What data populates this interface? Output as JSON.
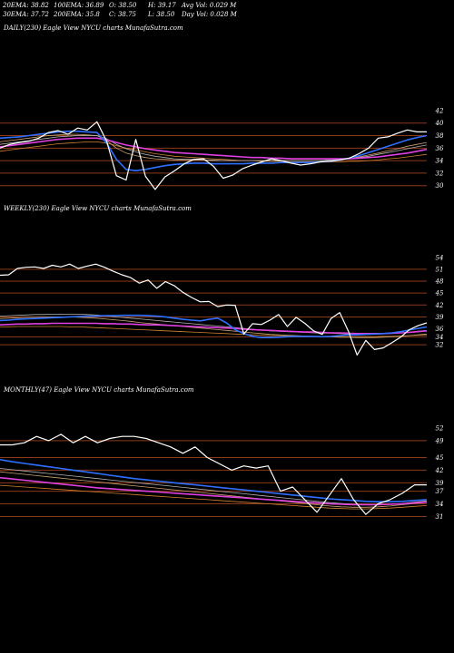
{
  "stats": {
    "ema20": "20EMA: 38.82",
    "ema100": "100EMA: 36.89",
    "open": "O: 38.50",
    "high": "H: 39.17",
    "avg_vol": "Avg Vol: 0.029 M",
    "ema30": "30EMA: 37.72",
    "ema200": "200EMA: 35.8",
    "close": "C: 38.75",
    "low": "L: 38.50",
    "day_vol": "Day Vol: 0.028 M"
  },
  "colors": {
    "background": "#000000",
    "price": "#ffffff",
    "ema_blue": "#2f6fff",
    "ema_pink": "#e040e0",
    "level_line": "#8b3a1a",
    "ema_tan": "#c8a070",
    "ema_orange": "#d08030",
    "ema_gray": "#b0b0b0"
  },
  "chart_data": [
    {
      "type": "line",
      "title": "DAILY(230) Eagle  View  NYCU charts MunafaSutra.com",
      "y_ticks": [
        "42",
        "40",
        "38",
        "36",
        "34",
        "32",
        "30"
      ],
      "levels": [
        40,
        38,
        36,
        34,
        32,
        30
      ],
      "ylim": [
        27.5,
        43
      ],
      "series": [
        {
          "role": "price",
          "values": [
            36.0,
            36.6,
            36.9,
            37.1,
            37.6,
            38.5,
            38.8,
            38.2,
            39.2,
            38.9,
            40.2,
            37.1,
            31.6,
            30.9,
            37.4,
            31.5,
            29.4,
            31.4,
            32.4,
            33.5,
            34.2,
            34.3,
            33.1,
            31.2,
            31.7,
            32.7,
            33.3,
            33.8,
            34.3,
            34.0,
            33.6,
            33.3,
            33.5,
            33.8,
            33.9,
            34.1,
            34.4,
            35.1,
            36.0,
            37.6,
            37.8,
            38.4,
            38.9,
            38.6,
            38.6
          ]
        },
        {
          "role": "ema",
          "color": "blue",
          "values": [
            37.6,
            37.7,
            37.8,
            38.0,
            38.2,
            38.4,
            38.6,
            38.7,
            38.7,
            38.6,
            38.5,
            36.8,
            34.2,
            32.6,
            32.4,
            32.6,
            32.9,
            33.2,
            33.4,
            33.5,
            33.6,
            33.6,
            33.5,
            33.5,
            33.5,
            33.5,
            33.6,
            33.6,
            33.6,
            33.7,
            33.7,
            33.7,
            33.7,
            33.8,
            33.9,
            34.1,
            34.4,
            34.8,
            35.3,
            35.8,
            36.3,
            36.8,
            37.3,
            37.7,
            38.0
          ]
        },
        {
          "role": "ema",
          "color": "pink",
          "values": [
            36.2,
            36.4,
            36.6,
            36.8,
            37.0,
            37.2,
            37.4,
            37.5,
            37.6,
            37.6,
            37.6,
            37.3,
            36.9,
            36.5,
            36.2,
            35.9,
            35.7,
            35.5,
            35.3,
            35.2,
            35.1,
            35.0,
            34.9,
            34.8,
            34.7,
            34.6,
            34.5,
            34.5,
            34.4,
            34.4,
            34.3,
            34.3,
            34.3,
            34.3,
            34.3,
            34.3,
            34.3,
            34.4,
            34.5,
            34.6,
            34.8,
            35.0,
            35.2,
            35.5,
            35.8
          ]
        },
        {
          "role": "ema",
          "color": "tan",
          "values": [
            37.0,
            37.2,
            37.4,
            37.6,
            37.8,
            38.0,
            38.1,
            38.2,
            38.2,
            38.1,
            38.0,
            37.2,
            36.0,
            35.2,
            34.8,
            34.5,
            34.3,
            34.2,
            34.1,
            34.1,
            34.1,
            34.1,
            34.0,
            34.0,
            34.0,
            34.0,
            34.0,
            34.0,
            34.0,
            34.0,
            34.0,
            34.0,
            34.0,
            34.0,
            34.1,
            34.2,
            34.4,
            34.6,
            34.9,
            35.2,
            35.6,
            35.9,
            36.3,
            36.6,
            36.9
          ]
        },
        {
          "role": "ema",
          "color": "orange",
          "values": [
            35.5,
            35.7,
            35.9,
            36.1,
            36.3,
            36.5,
            36.7,
            36.8,
            36.9,
            37.0,
            37.0,
            36.8,
            36.4,
            36.0,
            35.7,
            35.4,
            35.1,
            34.9,
            34.7,
            34.6,
            34.5,
            34.4,
            34.3,
            34.2,
            34.1,
            34.0,
            34.0,
            33.9,
            33.9,
            33.9,
            33.8,
            33.8,
            33.8,
            33.8,
            33.8,
            33.8,
            33.9,
            33.9,
            34.0,
            34.1,
            34.3,
            34.4,
            34.6,
            34.8,
            35.0
          ]
        },
        {
          "role": "ema",
          "color": "gray",
          "values": [
            36.6,
            36.8,
            37.0,
            37.2,
            37.4,
            37.6,
            37.8,
            37.9,
            38.0,
            38.0,
            38.0,
            37.5,
            36.6,
            35.9,
            35.4,
            35.0,
            34.7,
            34.5,
            34.3,
            34.2,
            34.2,
            34.1,
            34.1,
            34.0,
            34.0,
            34.0,
            34.0,
            34.0,
            34.0,
            34.0,
            34.0,
            34.0,
            34.0,
            34.0,
            34.1,
            34.2,
            34.3,
            34.5,
            34.7,
            35.0,
            35.3,
            35.6,
            35.9,
            36.2,
            36.5
          ]
        }
      ]
    },
    {
      "type": "line",
      "title": "WEEKLY(230) Eagle  View  NYCU charts MunafaSutra.com",
      "y_ticks": [
        "54",
        "51",
        "48",
        "45",
        "42",
        "39",
        "36",
        "34",
        "32"
      ],
      "levels": [
        51,
        48,
        45,
        42,
        39,
        34,
        32
      ],
      "ylim": [
        27,
        56
      ],
      "series": [
        {
          "role": "price",
          "values": [
            49.5,
            49.6,
            51.2,
            51.5,
            51.6,
            51.2,
            52.0,
            51.6,
            52.3,
            51.2,
            51.8,
            52.3,
            51.5,
            50.5,
            49.6,
            48.9,
            47.5,
            48.3,
            46.2,
            47.9,
            46.9,
            45.2,
            43.9,
            42.8,
            42.9,
            41.6,
            42.0,
            41.9,
            34.7,
            37.3,
            37.1,
            38.2,
            39.6,
            36.6,
            38.9,
            37.4,
            35.5,
            34.6,
            38.6,
            40.1,
            35.4,
            29.4,
            33.1,
            30.8,
            31.2,
            32.5,
            33.9,
            35.8,
            36.8,
            37.5
          ]
        },
        {
          "role": "ema",
          "color": "blue",
          "values": [
            38.1,
            38.2,
            38.4,
            38.5,
            38.6,
            38.7,
            38.8,
            38.9,
            39.0,
            39.1,
            39.2,
            39.2,
            39.3,
            39.3,
            39.4,
            39.4,
            39.4,
            39.3,
            39.2,
            39.0,
            38.7,
            38.4,
            38.2,
            38.0,
            38.4,
            38.7,
            37.5,
            35.8,
            34.8,
            34.1,
            33.8,
            33.8,
            33.9,
            34.0,
            34.1,
            34.1,
            34.1,
            34.0,
            34.1,
            34.3,
            34.5,
            34.5,
            34.6,
            34.7,
            34.8,
            35.0,
            35.3,
            35.7,
            36.1,
            36.5
          ]
        },
        {
          "role": "ema",
          "color": "pink",
          "values": [
            37.0,
            37.1,
            37.2,
            37.2,
            37.3,
            37.3,
            37.4,
            37.4,
            37.4,
            37.4,
            37.4,
            37.4,
            37.3,
            37.3,
            37.2,
            37.2,
            37.1,
            37.0,
            37.0,
            36.9,
            36.8,
            36.7,
            36.6,
            36.5,
            36.4,
            36.3,
            36.2,
            36.1,
            35.9,
            35.8,
            35.7,
            35.6,
            35.5,
            35.4,
            35.3,
            35.2,
            35.2,
            35.1,
            35.0,
            35.0,
            34.9,
            34.8,
            34.8,
            34.8,
            34.8,
            34.9,
            35.0,
            35.1,
            35.3,
            35.5
          ]
        },
        {
          "role": "ema",
          "color": "tan",
          "values": [
            38.6,
            38.7,
            38.8,
            38.9,
            38.9,
            39.0,
            39.0,
            39.0,
            39.0,
            38.9,
            38.8,
            38.7,
            38.5,
            38.3,
            38.1,
            37.9,
            37.6,
            37.4,
            37.2,
            37.0,
            36.8,
            36.6,
            36.4,
            36.2,
            36.0,
            35.8,
            35.6,
            35.4,
            35.2,
            35.0,
            34.8,
            34.6,
            34.5,
            34.4,
            34.3,
            34.2,
            34.1,
            34.0,
            34.0,
            33.9,
            33.9,
            33.8,
            33.8,
            33.8,
            33.9,
            34.0,
            34.1,
            34.3,
            34.5,
            34.7
          ]
        },
        {
          "role": "ema",
          "color": "orange",
          "values": [
            36.5,
            36.5,
            36.6,
            36.6,
            36.6,
            36.6,
            36.6,
            36.6,
            36.5,
            36.5,
            36.4,
            36.3,
            36.2,
            36.1,
            36.0,
            35.9,
            35.8,
            35.7,
            35.6,
            35.5,
            35.4,
            35.3,
            35.2,
            35.1,
            35.0,
            34.9,
            34.8,
            34.7,
            34.6,
            34.5,
            34.4,
            34.3,
            34.3,
            34.2,
            34.2,
            34.1,
            34.1,
            34.0,
            34.0,
            34.0,
            34.0,
            34.0,
            34.0,
            34.0,
            34.1,
            34.1,
            34.2,
            34.3,
            34.4,
            34.5
          ]
        },
        {
          "role": "ema",
          "color": "gray",
          "values": [
            39.2,
            39.3,
            39.4,
            39.5,
            39.6,
            39.6,
            39.7,
            39.7,
            39.7,
            39.7,
            39.6,
            39.5,
            39.3,
            39.1,
            38.9,
            38.7,
            38.5,
            38.3,
            38.1,
            37.9,
            37.7,
            37.5,
            37.3,
            37.1,
            36.9,
            36.7,
            36.5,
            36.3,
            36.1,
            35.9,
            35.7,
            35.5,
            35.4,
            35.3,
            35.2,
            35.1,
            35.0,
            34.9,
            34.9,
            34.8,
            34.7,
            34.7,
            34.7,
            34.7,
            34.8,
            34.9,
            35.0,
            35.2,
            35.4,
            35.6
          ]
        }
      ]
    },
    {
      "type": "line",
      "title": "MONTHLY(47) Eagle  View  NYCU charts MunafaSutra.com",
      "y_ticks": [
        "52",
        "49",
        "45",
        "42",
        "39",
        "37",
        "34",
        "31"
      ],
      "levels": [
        49,
        45,
        42,
        39,
        37,
        34,
        31
      ],
      "ylim": [
        24,
        55
      ],
      "series": [
        {
          "role": "price",
          "values": [
            48.0,
            48.0,
            48.5,
            50.0,
            49.0,
            50.5,
            48.5,
            50.0,
            48.5,
            49.5,
            50.0,
            50.0,
            49.5,
            48.5,
            47.5,
            46.0,
            47.5,
            45.0,
            43.5,
            42.0,
            43.0,
            42.5,
            43.0,
            37.0,
            38.0,
            35.0,
            32.0,
            36.0,
            40.0,
            35.0,
            31.5,
            34.0,
            35.0,
            36.5,
            38.5,
            38.5
          ]
        },
        {
          "role": "ema",
          "color": "blue",
          "values": [
            44.5,
            44.0,
            43.6,
            43.2,
            42.8,
            42.4,
            42.0,
            41.6,
            41.2,
            40.8,
            40.4,
            40.0,
            39.7,
            39.4,
            39.1,
            38.8,
            38.5,
            38.2,
            37.9,
            37.6,
            37.3,
            37.0,
            36.7,
            36.4,
            36.1,
            35.8,
            35.5,
            35.2,
            35.0,
            34.8,
            34.6,
            34.5,
            34.5,
            34.6,
            34.8,
            35.0
          ]
        },
        {
          "role": "ema",
          "color": "pink",
          "values": [
            40.2,
            39.9,
            39.6,
            39.3,
            39.0,
            38.7,
            38.4,
            38.1,
            37.8,
            37.6,
            37.4,
            37.2,
            37.0,
            36.8,
            36.6,
            36.4,
            36.2,
            36.0,
            35.8,
            35.6,
            35.4,
            35.2,
            35.0,
            34.8,
            34.6,
            34.4,
            34.2,
            34.0,
            33.9,
            33.8,
            33.8,
            33.8,
            33.9,
            34.0,
            34.2,
            34.4
          ]
        },
        {
          "role": "ema",
          "color": "tan",
          "values": [
            41.6,
            41.3,
            41.0,
            40.7,
            40.4,
            40.1,
            39.8,
            39.5,
            39.2,
            38.9,
            38.6,
            38.3,
            38.0,
            37.7,
            37.4,
            37.1,
            36.8,
            36.5,
            36.2,
            35.9,
            35.6,
            35.3,
            35.0,
            34.7,
            34.4,
            34.1,
            33.8,
            33.5,
            33.3,
            33.2,
            33.2,
            33.3,
            33.5,
            33.8,
            34.1,
            34.4
          ]
        },
        {
          "role": "ema",
          "color": "orange",
          "values": [
            38.4,
            38.2,
            38.0,
            37.8,
            37.6,
            37.4,
            37.2,
            37.0,
            36.8,
            36.6,
            36.4,
            36.2,
            36.0,
            35.8,
            35.6,
            35.4,
            35.2,
            35.0,
            34.8,
            34.6,
            34.4,
            34.2,
            34.0,
            33.8,
            33.6,
            33.4,
            33.2,
            33.0,
            32.9,
            32.8,
            32.8,
            32.9,
            33.0,
            33.2,
            33.4,
            33.6
          ]
        },
        {
          "role": "ema",
          "color": "gray",
          "values": [
            42.4,
            42.1,
            41.8,
            41.5,
            41.2,
            40.9,
            40.6,
            40.3,
            40.0,
            39.7,
            39.4,
            39.1,
            38.8,
            38.5,
            38.2,
            37.9,
            37.6,
            37.3,
            37.0,
            36.7,
            36.4,
            36.1,
            35.8,
            35.5,
            35.2,
            34.9,
            34.6,
            34.3,
            34.1,
            33.9,
            33.8,
            33.8,
            33.9,
            34.1,
            34.4,
            34.7
          ]
        }
      ]
    }
  ]
}
